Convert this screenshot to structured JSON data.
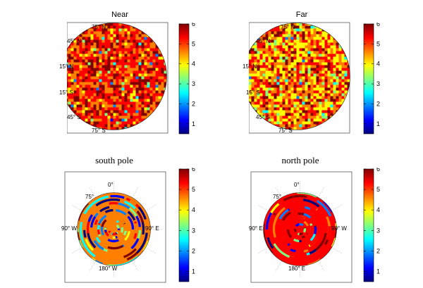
{
  "colorbar_colors": [
    "#00007f",
    "#0000ff",
    "#007fff",
    "#00ffff",
    "#7fff7f",
    "#ffff00",
    "#ff7f00",
    "#ff0000",
    "#7f0000"
  ],
  "chart_data": [
    {
      "type": "heatmap",
      "title": "Near",
      "projection": "orthographic",
      "lat_labels": [
        "75° N",
        "45° N",
        "15° N",
        "15° S",
        "45° S",
        "75° S"
      ],
      "colorbar": {
        "min": 0.5,
        "max": 6,
        "ticks": [
          "1",
          "2",
          "3",
          "4",
          "5",
          "6"
        ]
      },
      "dominant_value_range": [
        4.5,
        6
      ]
    },
    {
      "type": "heatmap",
      "title": "Far",
      "projection": "orthographic",
      "lat_labels": [
        "75° N",
        "45° N",
        "15° N",
        "15° S",
        "45° S",
        "75° S"
      ],
      "colorbar": {
        "min": 0.5,
        "max": 6,
        "ticks": [
          "1",
          "2",
          "3",
          "4",
          "5",
          "6"
        ]
      },
      "dominant_value_range": [
        3.5,
        6
      ]
    },
    {
      "type": "heatmap",
      "title": "south pole",
      "projection": "polar",
      "lon_labels": {
        "top": "0°",
        "left": "90° W",
        "right": "90° E",
        "bottom": "180° W"
      },
      "lat_labels": [
        "75°"
      ],
      "colorbar": {
        "min": 0.5,
        "max": 6,
        "ticks": [
          "1",
          "2",
          "3",
          "4",
          "5",
          "6"
        ]
      }
    },
    {
      "type": "heatmap",
      "title": "north pole",
      "projection": "polar",
      "lon_labels": {
        "top": "0°",
        "left": "90° E",
        "right": "90° W",
        "bottom": "180° E"
      },
      "lat_labels": [
        "75°"
      ],
      "colorbar": {
        "min": 0.5,
        "max": 6,
        "ticks": [
          "1",
          "2",
          "3",
          "4",
          "5",
          "6"
        ]
      }
    }
  ]
}
